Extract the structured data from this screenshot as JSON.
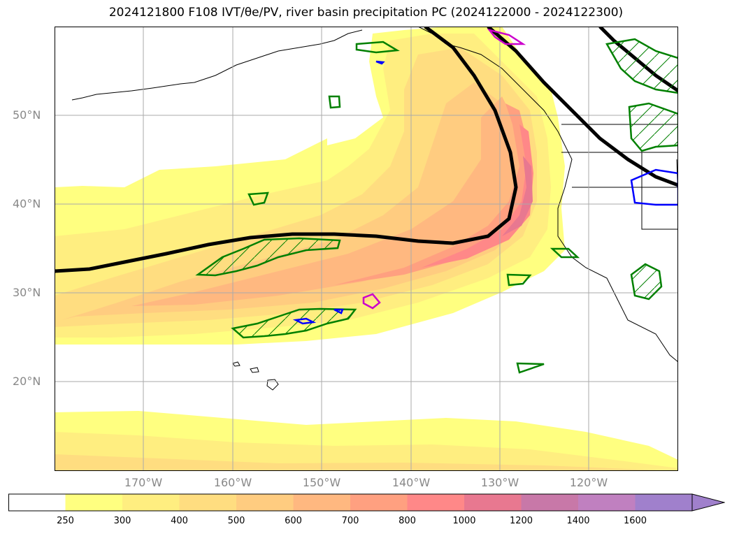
{
  "title": "2024121800 F108 IVT/θe/PV, river basin precipitation PC (2024122000 - 2024122300)",
  "lat_labels": [
    "50°N",
    "40°N",
    "30°N",
    "20°N"
  ],
  "lon_labels": [
    "170°W",
    "160°W",
    "150°W",
    "140°W",
    "130°W",
    "120°W"
  ],
  "colorbar": {
    "ticks": [
      "250",
      "300",
      "400",
      "500",
      "600",
      "700",
      "800",
      "1000",
      "1200",
      "1400",
      "1600"
    ],
    "colors": [
      "#ffffff",
      "#ffff80",
      "#ffee80",
      "#ffdd80",
      "#ffcc80",
      "#ffb880",
      "#ffa080",
      "#ff8888",
      "#e87890",
      "#c878a8",
      "#c080c0",
      "#a080cc"
    ],
    "extend": "max"
  },
  "legend_colors": {
    "theta_e_contour": "#000000",
    "precip_high": "#008000",
    "precip_low": "#0000ff",
    "pv": "#cc00cc",
    "grid": "#aaaaaa",
    "coast": "#000000"
  }
}
